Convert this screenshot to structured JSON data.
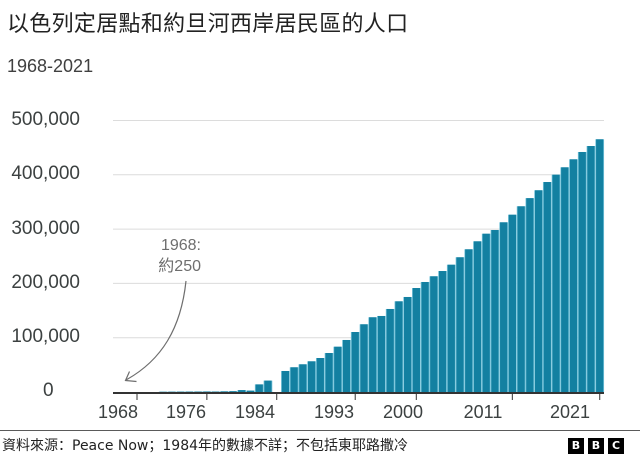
{
  "header": {
    "title": "以色列定居點和約旦河西岸居民區的人口",
    "subtitle": "1968-2021"
  },
  "y_axis": {
    "ticks": [
      {
        "label": "500,000",
        "value": 500000
      },
      {
        "label": "400,000",
        "value": 400000
      },
      {
        "label": "300,000",
        "value": 300000
      },
      {
        "label": "200,000",
        "value": 200000
      },
      {
        "label": "100,000",
        "value": 100000
      },
      {
        "label": "0",
        "value": 0
      }
    ]
  },
  "x_axis": {
    "ticks": [
      {
        "label": "1968",
        "year": 1968
      },
      {
        "label": "1976",
        "year": 1976
      },
      {
        "label": "1984",
        "year": 1984
      },
      {
        "label": "1993",
        "year": 1993
      },
      {
        "label": "2000",
        "year": 2000
      },
      {
        "label": "2011",
        "year": 2011
      },
      {
        "label": "2021",
        "year": 2021
      }
    ]
  },
  "annotation": {
    "line1": "1968:",
    "line2": "約250"
  },
  "footer": {
    "source": "資料來源：Peace Now；1984年的數據不詳；不包括東耶路撒冷",
    "logo": [
      "B",
      "B",
      "C"
    ]
  },
  "colors": {
    "bar": "#1380a1",
    "bar_edge": "#7cc6dc",
    "grid": "#dcdcdc",
    "axis": "#333333",
    "tick": "#555555",
    "arrow": "#6e6e6e"
  },
  "chart_data": {
    "type": "bar",
    "title": "以色列定居點和約旦河西岸居民區的人口",
    "subtitle": "1968-2021",
    "xlabel": "",
    "ylabel": "",
    "ylim": [
      0,
      500000
    ],
    "grid": true,
    "legend": null,
    "categories": [
      "1968",
      "1969",
      "1970",
      "1971",
      "1972",
      "1973",
      "1974",
      "1975",
      "1976",
      "1977",
      "1978",
      "1979",
      "1980",
      "1981",
      "1982",
      "1983",
      "1984",
      "1985",
      "1986",
      "1987",
      "1988",
      "1989",
      "1990",
      "1991",
      "1992",
      "1993",
      "1994",
      "1995",
      "1996",
      "1997",
      "1998",
      "1999",
      "2000",
      "2001",
      "2002",
      "2003",
      "2004",
      "2005",
      "2006",
      "2007",
      "2008",
      "2009",
      "2010",
      "2011",
      "2012",
      "2013",
      "2014",
      "2015",
      "2016",
      "2017",
      "2018",
      "2019",
      "2020",
      "2021"
    ],
    "values": [
      250,
      300,
      400,
      500,
      600,
      700,
      800,
      900,
      1000,
      900,
      1200,
      1500,
      3500,
      2500,
      14000,
      21000,
      null,
      38700,
      45500,
      51000,
      56500,
      62600,
      71800,
      83400,
      95800,
      110500,
      124700,
      137600,
      140000,
      152900,
      167000,
      175000,
      191500,
      202600,
      213100,
      222800,
      234400,
      248100,
      262800,
      277500,
      291500,
      298300,
      312500,
      326500,
      342000,
      357000,
      371500,
      386700,
      400200,
      413800,
      428500,
      442000,
      453000,
      465400
    ],
    "annotations": [
      {
        "text": "1968: 約250",
        "target": "1968"
      }
    ],
    "notes": "1984 data unavailable; excludes East Jerusalem; source Peace Now"
  }
}
